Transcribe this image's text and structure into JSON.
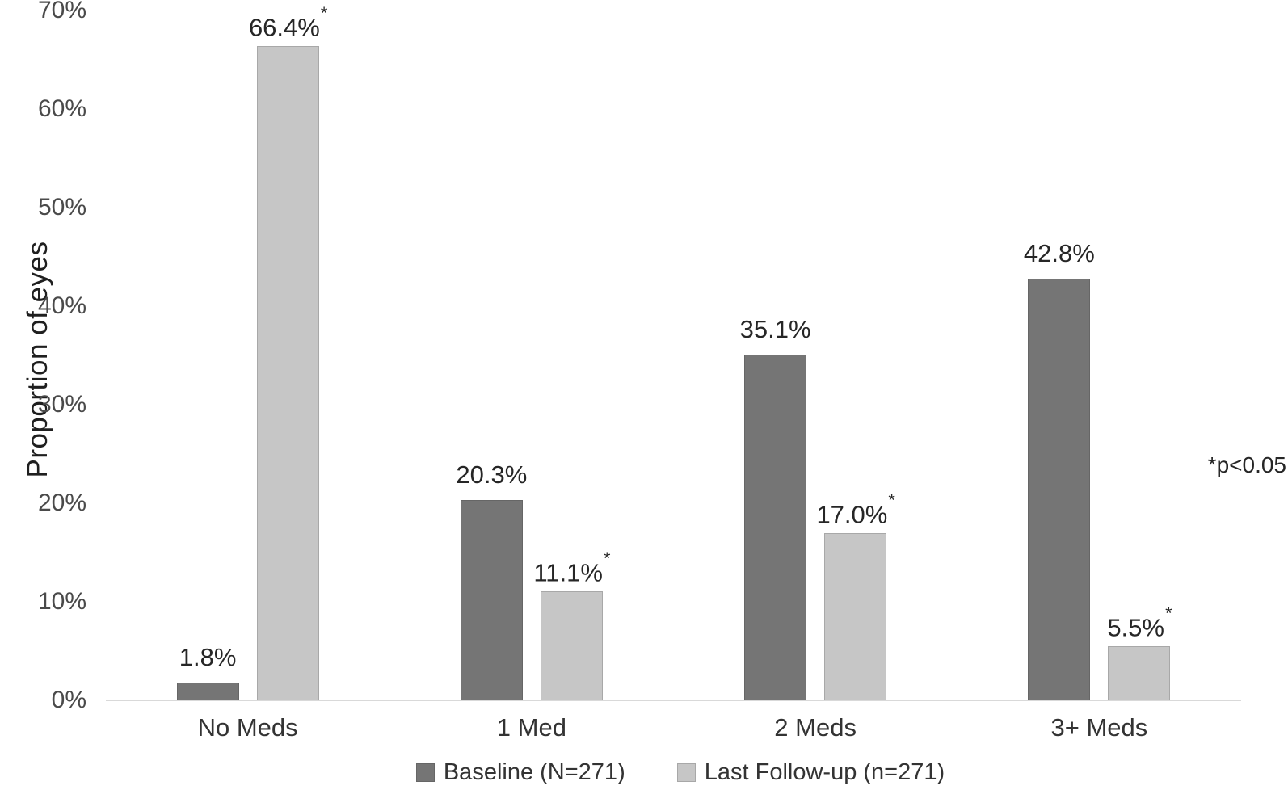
{
  "figure": {
    "background": "#ffffff",
    "axis_color": "#d9d9d9",
    "tick_color": "#4a4a4a",
    "label_color": "#262626"
  },
  "chart_data": {
    "type": "bar",
    "title": "",
    "xlabel": "",
    "ylabel": "Proportion of eyes",
    "categories": [
      "No Meds",
      "1 Med",
      "2 Meds",
      "3+ Meds"
    ],
    "series": [
      {
        "name": "Baseline (N=271)",
        "color": "#757575",
        "border_color": "#666666",
        "values": [
          1.8,
          20.3,
          35.1,
          42.8
        ],
        "labels": [
          "1.8%",
          "20.3%",
          "35.1%",
          "42.8%"
        ],
        "significant": [
          false,
          false,
          false,
          false
        ]
      },
      {
        "name": "Last Follow-up (n=271)",
        "color": "#c6c6c6",
        "border_color": "#a8a8a8",
        "values": [
          66.4,
          11.1,
          17.0,
          5.5
        ],
        "labels": [
          "66.4%",
          "11.1%",
          "17.0%",
          "5.5%"
        ],
        "significant": [
          true,
          true,
          true,
          true
        ]
      }
    ],
    "ylim": [
      0,
      70
    ],
    "yticks": [
      "0%",
      "10%",
      "20%",
      "30%",
      "40%",
      "50%",
      "60%",
      "70%"
    ],
    "ytick_values": [
      0,
      10,
      20,
      30,
      40,
      50,
      60,
      70
    ],
    "grid": false,
    "legend_position": "bottom",
    "sig_marker": "*",
    "annotation": "*p<0.05"
  }
}
